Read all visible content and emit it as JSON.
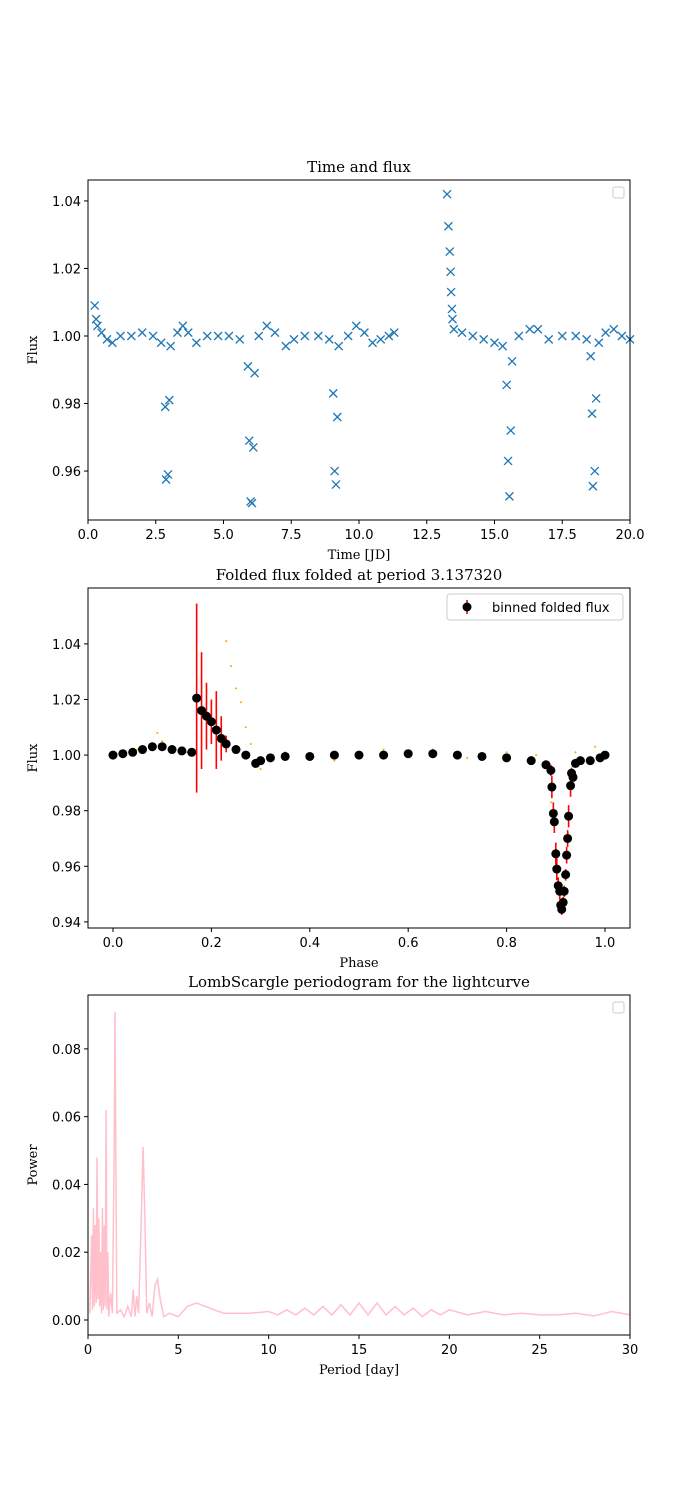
{
  "chart_data": [
    {
      "type": "scatter",
      "title": "Time and flux",
      "xlabel": "Time [JD]",
      "ylabel": "Flux",
      "xlim": [
        0,
        20
      ],
      "ylim": [
        0.9455,
        1.0462
      ],
      "xticks": [
        {
          "value": 0,
          "label": "0.0"
        },
        2.5,
        {
          "value": 5,
          "label": "5.0"
        },
        7.5,
        {
          "value": 10,
          "label": "10.0"
        },
        12.5,
        {
          "value": 15,
          "label": "15.0"
        },
        17.5,
        {
          "value": 20,
          "label": "20.0"
        }
      ],
      "yticks": [
        0.96,
        0.98,
        {
          "value": 1,
          "label": "1.00"
        },
        1.02,
        1.04
      ],
      "legend": "upper right",
      "marker": "x",
      "x": [
        0.25,
        0.3,
        0.35,
        0.5,
        0.7,
        0.9,
        1.2,
        1.6,
        2.0,
        2.4,
        2.7,
        2.85,
        2.88,
        2.95,
        3.0,
        3.05,
        3.3,
        3.5,
        3.7,
        4.0,
        4.4,
        4.8,
        5.2,
        5.6,
        5.9,
        5.95,
        6.0,
        6.05,
        6.1,
        6.15,
        6.3,
        6.6,
        6.9,
        7.3,
        7.6,
        8.0,
        8.5,
        8.9,
        9.05,
        9.1,
        9.15,
        9.2,
        9.25,
        9.6,
        9.9,
        10.2,
        10.5,
        10.8,
        11.1,
        11.3,
        13.25,
        13.3,
        13.35,
        13.38,
        13.4,
        13.43,
        13.45,
        13.5,
        13.8,
        14.2,
        14.6,
        15.0,
        15.3,
        15.45,
        15.5,
        15.55,
        15.6,
        15.65,
        15.9,
        16.3,
        16.6,
        17.0,
        17.5,
        18.0,
        18.4,
        18.55,
        18.6,
        18.63,
        18.7,
        18.75,
        18.85,
        19.1,
        19.4,
        19.7,
        20.0
      ],
      "series": [
        {
          "color": "#1f77b4",
          "values": [
            1.009,
            1.005,
            1.003,
            1.001,
            0.999,
            0.998,
            1.0,
            1.0,
            1.001,
            1.0,
            0.998,
            0.979,
            0.9575,
            0.959,
            0.981,
            0.997,
            1.001,
            1.003,
            1.001,
            0.998,
            1.0,
            1.0,
            1.0,
            0.999,
            0.991,
            0.969,
            0.951,
            0.9505,
            0.967,
            0.989,
            1.0,
            1.003,
            1.001,
            0.997,
            0.999,
            1.0,
            1.0,
            0.999,
            0.983,
            0.96,
            0.956,
            0.976,
            0.997,
            1.0,
            1.003,
            1.001,
            0.998,
            0.999,
            1.0,
            1.001,
            1.042,
            1.0325,
            1.025,
            1.019,
            1.013,
            1.008,
            1.005,
            1.002,
            1.001,
            1.0,
            0.999,
            0.998,
            0.997,
            0.9855,
            0.963,
            0.9525,
            0.972,
            0.9925,
            1.0,
            1.002,
            1.002,
            0.999,
            1.0,
            1.0,
            0.999,
            0.994,
            0.977,
            0.9555,
            0.96,
            0.9815,
            0.998,
            1.001,
            1.002,
            1.0,
            0.999
          ]
        }
      ]
    },
    {
      "type": "errorbar",
      "title": "Folded flux folded at period 3.137320",
      "xlabel": "Phase",
      "ylabel": "Flux",
      "xlim": [
        -0.0508,
        1.0508
      ],
      "ylim": [
        0.9378,
        1.0601
      ],
      "xticks": [
        {
          "value": 0,
          "label": "0.0"
        },
        0.2,
        0.4,
        0.6,
        0.8,
        {
          "value": 1,
          "label": "1.0"
        }
      ],
      "yticks": [
        0.94,
        0.96,
        0.98,
        {
          "value": 1,
          "label": "1.00"
        },
        1.02,
        1.04
      ],
      "legend": "upper right",
      "x": [
        0,
        0.02,
        0.04,
        0.06,
        0.08,
        0.1,
        0.12,
        0.14,
        0.16,
        0.17,
        0.18,
        0.19,
        0.2,
        0.21,
        0.22,
        0.23,
        0.25,
        0.27,
        0.29,
        0.3,
        0.32,
        0.35,
        0.4,
        0.45,
        0.5,
        0.55,
        0.6,
        0.65,
        0.7,
        0.75,
        0.8,
        0.85,
        0.88,
        0.89,
        0.892,
        0.895,
        0.897,
        0.9,
        0.902,
        0.905,
        0.908,
        0.91,
        0.912,
        0.915,
        0.917,
        0.92,
        0.922,
        0.924,
        0.926,
        0.93,
        0.932,
        0.935,
        0.94,
        0.95,
        0.97,
        0.99,
        1
      ],
      "series": [
        {
          "name": "binned folded flux",
          "color": "#000000",
          "error_color": "#ff0000",
          "values": [
            1.0,
            1.0005,
            1.001,
            1.002,
            1.003,
            1.003,
            1.002,
            1.0015,
            1.001,
            1.0205,
            1.016,
            1.014,
            1.012,
            1.009,
            1.006,
            1.004,
            1.002,
            1.0,
            0.997,
            0.998,
            0.999,
            0.9995,
            0.9995,
            1.0,
            1.0,
            1.0,
            1.0005,
            1.0005,
            1.0,
            0.9995,
            0.999,
            0.998,
            0.9965,
            0.9945,
            0.9885,
            0.979,
            0.976,
            0.9645,
            0.959,
            0.953,
            0.951,
            0.946,
            0.9445,
            0.947,
            0.951,
            0.957,
            0.964,
            0.97,
            0.978,
            0.989,
            0.9935,
            0.992,
            0.997,
            0.998,
            0.998,
            0.999,
            1.0
          ],
          "errors": [
            0.0005,
            0.0005,
            0.0005,
            0.0005,
            0.0005,
            0.0005,
            0.0005,
            0.0005,
            0.0005,
            0.034,
            0.021,
            0.012,
            0.008,
            0.014,
            0.008,
            0.003,
            0.001,
            0.001,
            0.001,
            0.001,
            0.001,
            0.001,
            0.0005,
            0.0005,
            0.0005,
            0.0005,
            0.0005,
            0.0005,
            0.0005,
            0.0005,
            0.0005,
            0.0005,
            0.001,
            0.002,
            0.004,
            0.004,
            0.004,
            0.004,
            0.004,
            0.003,
            0.003,
            0.002,
            0.002,
            0.002,
            0.002,
            0.002,
            0.003,
            0.003,
            0.004,
            0.004,
            0.002,
            0.001,
            0.0005,
            0.0005,
            0.0005,
            0.0005,
            0.0005
          ]
        }
      ],
      "raw": {
        "color": "#ffa500",
        "x": [
          0.05,
          0.09,
          0.1,
          0.15,
          0.23,
          0.24,
          0.25,
          0.26,
          0.27,
          0.28,
          0.3,
          0.35,
          0.45,
          0.55,
          0.65,
          0.72,
          0.8,
          0.86,
          0.89,
          0.9,
          0.91,
          0.92,
          0.925,
          0.94,
          0.98
        ],
        "values": [
          1.002,
          1.008,
          1.005,
          1.001,
          1.041,
          1.032,
          1.024,
          1.019,
          1.01,
          1.004,
          0.995,
          1.001,
          0.998,
          1.002,
          1.002,
          0.999,
          1.001,
          1.0,
          0.983,
          0.968,
          0.95,
          0.955,
          0.972,
          1.001,
          1.003
        ]
      }
    },
    {
      "type": "line",
      "title": "LombScargle periodogram for the lightcurve",
      "xlabel": "Period [day]",
      "ylabel": "Power",
      "xlim": [
        0,
        30
      ],
      "ylim": [
        -0.00443,
        0.0959
      ],
      "xticks": [
        0,
        5,
        10,
        15,
        20,
        25,
        30
      ],
      "yticks": [
        {
          "value": 0,
          "label": "0.00"
        },
        0.02,
        0.04,
        0.06,
        0.08
      ],
      "legend": "upper right",
      "x": [
        0.1,
        0.2,
        0.25,
        0.3,
        0.35,
        0.4,
        0.45,
        0.5,
        0.55,
        0.6,
        0.65,
        0.7,
        0.75,
        0.8,
        0.85,
        0.9,
        0.95,
        1.0,
        1.05,
        1.1,
        1.15,
        1.25,
        1.35,
        1.45,
        1.5,
        1.55,
        1.6,
        1.8,
        2.0,
        2.2,
        2.4,
        2.5,
        2.6,
        2.7,
        2.8,
        2.95,
        3.05,
        3.15,
        3.25,
        3.4,
        3.55,
        3.7,
        3.85,
        4.0,
        4.2,
        4.5,
        5.0,
        5.5,
        6.0,
        6.5,
        7.0,
        7.5,
        8.0,
        9.0,
        10,
        10.5,
        11,
        11.5,
        12,
        12.5,
        13,
        13.5,
        14,
        14.5,
        15,
        15.5,
        16,
        16.5,
        17,
        17.5,
        18,
        18.5,
        19,
        19.5,
        20,
        21,
        22,
        23,
        24,
        25,
        26,
        27,
        28,
        29,
        30
      ],
      "series": [
        {
          "color": "#ffc0cb",
          "values": [
            0.002,
            0.025,
            0.003,
            0.033,
            0.004,
            0.028,
            0.005,
            0.048,
            0.006,
            0.03,
            0.004,
            0.02,
            0.002,
            0.033,
            0.003,
            0.028,
            0.004,
            0.062,
            0.003,
            0.02,
            0.001,
            0.008,
            0.002,
            0.05,
            0.091,
            0.04,
            0.002,
            0.003,
            0.001,
            0.004,
            0.001,
            0.009,
            0.001,
            0.007,
            0.002,
            0.03,
            0.051,
            0.03,
            0.002,
            0.005,
            0.001,
            0.01,
            0.012,
            0.006,
            0.001,
            0.002,
            0.001,
            0.004,
            0.005,
            0.004,
            0.003,
            0.002,
            0.002,
            0.002,
            0.0025,
            0.0015,
            0.003,
            0.0015,
            0.0035,
            0.0015,
            0.004,
            0.0015,
            0.0045,
            0.0015,
            0.005,
            0.0015,
            0.005,
            0.0015,
            0.004,
            0.0015,
            0.0035,
            0.001,
            0.003,
            0.0015,
            0.003,
            0.0015,
            0.0025,
            0.0015,
            0.002,
            0.0015,
            0.0015,
            0.002,
            0.0012,
            0.0025,
            0.0015
          ]
        }
      ]
    }
  ]
}
